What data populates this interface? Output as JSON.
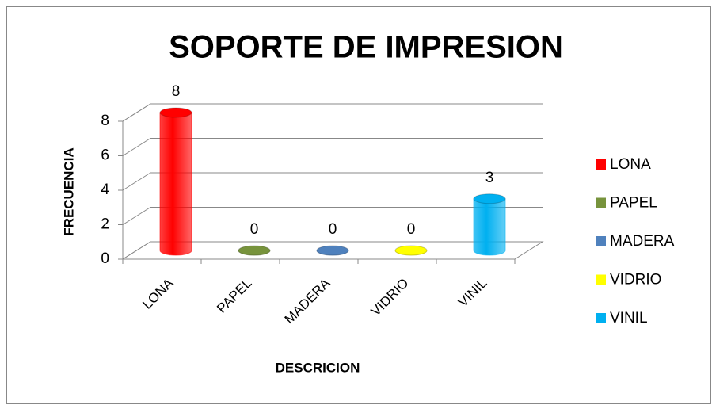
{
  "chart_data": {
    "type": "bar3d",
    "title": "SOPORTE DE IMPRESION",
    "x_label": "DESCRICION",
    "y_label": "FRECUENCIA",
    "categories": [
      "LONA",
      "PAPEL",
      "MADERA",
      "VIDRIO",
      "VINIL"
    ],
    "values": [
      8,
      0,
      0,
      0,
      3
    ],
    "colors": [
      "#ff0000",
      "#77933c",
      "#4f81bd",
      "#ffff00",
      "#00b0f0"
    ],
    "ylim": [
      0,
      8
    ],
    "yticks": [
      0,
      2,
      4,
      6,
      8
    ],
    "grid": true,
    "legend": "right"
  }
}
